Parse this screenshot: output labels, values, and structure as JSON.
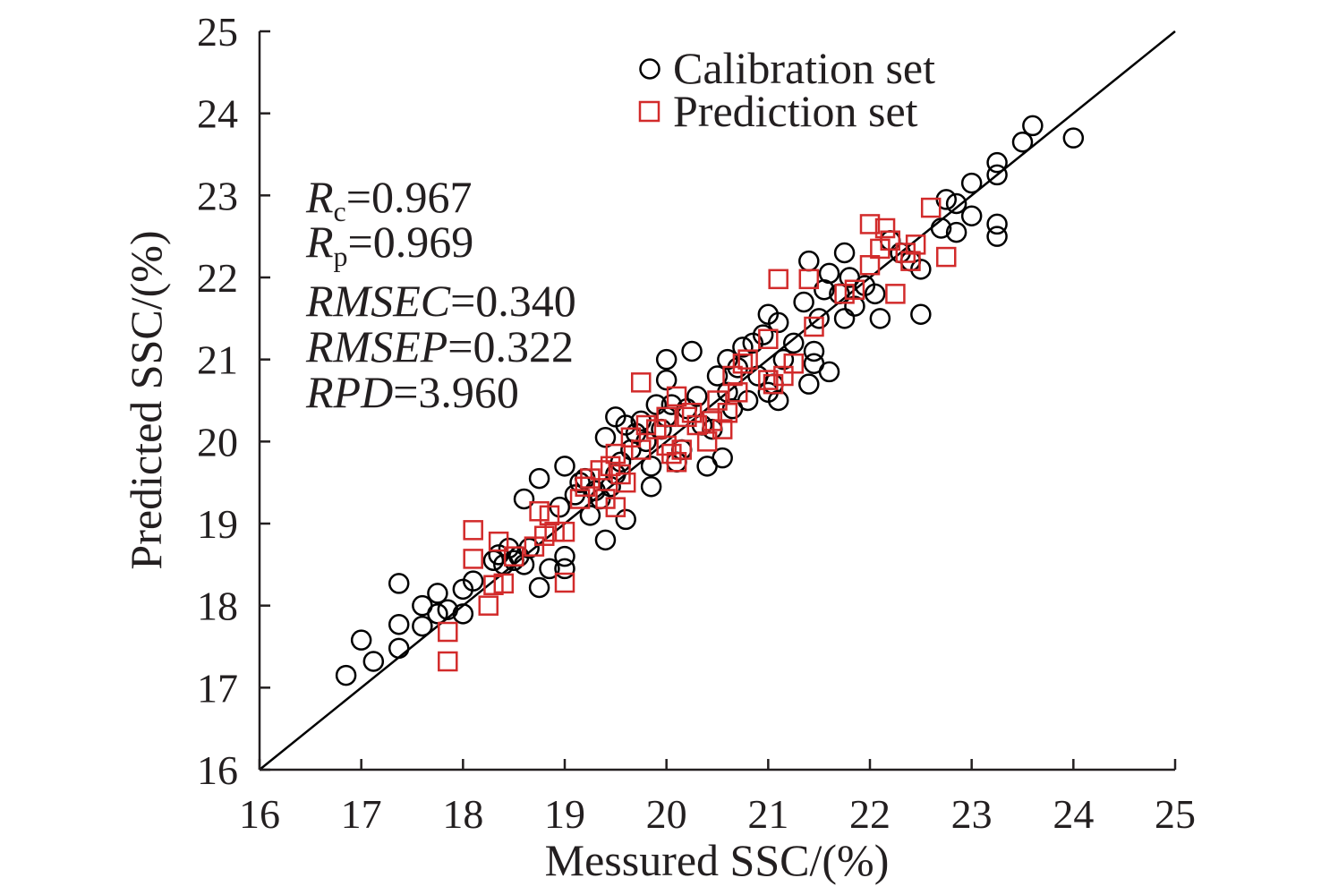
{
  "chart_data": {
    "type": "scatter",
    "xlabel": "Messured SSC/(%)",
    "ylabel": "Predicted SSC/(%)",
    "xlim": [
      16,
      25
    ],
    "ylim": [
      16,
      25
    ],
    "xticks": [
      "16",
      "17",
      "18",
      "19",
      "20",
      "21",
      "22",
      "23",
      "24",
      "25"
    ],
    "yticks": [
      "16",
      "17",
      "18",
      "19",
      "20",
      "21",
      "22",
      "23",
      "24",
      "25"
    ],
    "grid": false,
    "legend_position": "top-right",
    "reference_line": {
      "from": [
        16,
        16
      ],
      "to": [
        25,
        25
      ],
      "color": "#000000"
    },
    "stats": [
      {
        "italic": "R",
        "sub": "c",
        "rest": "=0.967"
      },
      {
        "italic": "R",
        "sub": "p",
        "rest": "=0.969"
      },
      {
        "italic": "RMSEC",
        "sub": "",
        "rest": "=0.340"
      },
      {
        "italic": "RMSEP",
        "sub": "",
        "rest": "=0.322"
      },
      {
        "italic": "RPD",
        "sub": "",
        "rest": "=3.960"
      }
    ],
    "series": [
      {
        "name": "Calibration set",
        "marker": "circle",
        "color": "#000000",
        "points": [
          [
            16.85,
            17.15
          ],
          [
            17.0,
            17.58
          ],
          [
            17.12,
            17.32
          ],
          [
            17.37,
            18.27
          ],
          [
            17.37,
            17.77
          ],
          [
            17.37,
            17.48
          ],
          [
            17.6,
            18.0
          ],
          [
            17.6,
            17.75
          ],
          [
            17.75,
            18.15
          ],
          [
            17.75,
            17.9
          ],
          [
            17.85,
            17.95
          ],
          [
            18.0,
            18.2
          ],
          [
            18.0,
            17.9
          ],
          [
            18.1,
            18.3
          ],
          [
            18.3,
            18.55
          ],
          [
            18.35,
            18.62
          ],
          [
            18.4,
            18.5
          ],
          [
            18.45,
            18.7
          ],
          [
            18.5,
            18.55
          ],
          [
            18.55,
            18.6
          ],
          [
            18.6,
            18.5
          ],
          [
            18.6,
            19.3
          ],
          [
            18.65,
            18.7
          ],
          [
            18.75,
            19.55
          ],
          [
            18.75,
            18.22
          ],
          [
            18.85,
            18.45
          ],
          [
            18.95,
            19.2
          ],
          [
            19.0,
            19.7
          ],
          [
            19.0,
            18.6
          ],
          [
            19.0,
            18.45
          ],
          [
            19.1,
            19.35
          ],
          [
            19.15,
            19.5
          ],
          [
            19.2,
            19.55
          ],
          [
            19.25,
            19.1
          ],
          [
            19.3,
            19.4
          ],
          [
            19.35,
            19.3
          ],
          [
            19.4,
            20.05
          ],
          [
            19.4,
            18.8
          ],
          [
            19.45,
            19.45
          ],
          [
            19.5,
            20.3
          ],
          [
            19.5,
            19.6
          ],
          [
            19.55,
            19.75
          ],
          [
            19.6,
            20.2
          ],
          [
            19.6,
            19.05
          ],
          [
            19.65,
            19.9
          ],
          [
            19.7,
            20.1
          ],
          [
            19.75,
            20.25
          ],
          [
            19.8,
            20.0
          ],
          [
            19.85,
            19.45
          ],
          [
            19.85,
            19.7
          ],
          [
            19.9,
            20.45
          ],
          [
            19.95,
            20.15
          ],
          [
            20.0,
            21.0
          ],
          [
            20.0,
            20.75
          ],
          [
            20.0,
            20.3
          ],
          [
            20.05,
            20.45
          ],
          [
            20.1,
            19.75
          ],
          [
            20.15,
            19.9
          ],
          [
            20.2,
            20.4
          ],
          [
            20.25,
            21.1
          ],
          [
            20.3,
            20.55
          ],
          [
            20.35,
            20.2
          ],
          [
            20.4,
            19.7
          ],
          [
            20.45,
            20.15
          ],
          [
            20.5,
            20.8
          ],
          [
            20.55,
            19.8
          ],
          [
            20.6,
            20.6
          ],
          [
            20.6,
            21.0
          ],
          [
            20.65,
            20.4
          ],
          [
            20.7,
            20.9
          ],
          [
            20.75,
            21.15
          ],
          [
            20.8,
            20.5
          ],
          [
            20.85,
            21.2
          ],
          [
            20.9,
            20.8
          ],
          [
            20.95,
            21.3
          ],
          [
            21.0,
            21.55
          ],
          [
            21.0,
            20.6
          ],
          [
            21.05,
            20.7
          ],
          [
            21.1,
            21.45
          ],
          [
            21.1,
            20.5
          ],
          [
            21.15,
            21.0
          ],
          [
            21.25,
            21.2
          ],
          [
            21.35,
            21.7
          ],
          [
            21.4,
            22.2
          ],
          [
            21.4,
            20.7
          ],
          [
            21.45,
            21.1
          ],
          [
            21.45,
            20.95
          ],
          [
            21.5,
            21.5
          ],
          [
            21.55,
            21.85
          ],
          [
            21.6,
            22.05
          ],
          [
            21.6,
            20.85
          ],
          [
            21.7,
            21.8
          ],
          [
            21.75,
            22.3
          ],
          [
            21.75,
            21.5
          ],
          [
            21.8,
            22.0
          ],
          [
            21.85,
            21.65
          ],
          [
            21.95,
            21.9
          ],
          [
            22.05,
            21.8
          ],
          [
            22.1,
            21.5
          ],
          [
            22.2,
            22.45
          ],
          [
            22.3,
            22.3
          ],
          [
            22.4,
            22.2
          ],
          [
            22.5,
            22.1
          ],
          [
            22.5,
            21.55
          ],
          [
            22.7,
            22.6
          ],
          [
            22.75,
            22.95
          ],
          [
            22.85,
            22.9
          ],
          [
            22.85,
            22.55
          ],
          [
            23.0,
            23.15
          ],
          [
            23.0,
            22.75
          ],
          [
            23.25,
            23.4
          ],
          [
            23.25,
            23.25
          ],
          [
            23.25,
            22.65
          ],
          [
            23.25,
            22.5
          ],
          [
            23.5,
            23.65
          ],
          [
            23.6,
            23.85
          ],
          [
            24.0,
            23.7
          ]
        ]
      },
      {
        "name": "Prediction set",
        "marker": "square",
        "color": "#d22b2b",
        "points": [
          [
            17.85,
            17.68
          ],
          [
            17.85,
            17.32
          ],
          [
            18.1,
            18.92
          ],
          [
            18.1,
            18.57
          ],
          [
            18.25,
            18.0
          ],
          [
            18.3,
            18.25
          ],
          [
            18.35,
            18.78
          ],
          [
            18.4,
            18.27
          ],
          [
            18.5,
            18.6
          ],
          [
            18.7,
            18.72
          ],
          [
            18.75,
            19.15
          ],
          [
            18.8,
            18.85
          ],
          [
            18.85,
            19.1
          ],
          [
            18.9,
            18.9
          ],
          [
            19.0,
            18.9
          ],
          [
            19.0,
            18.28
          ],
          [
            19.15,
            19.3
          ],
          [
            19.2,
            19.45
          ],
          [
            19.25,
            19.55
          ],
          [
            19.35,
            19.65
          ],
          [
            19.4,
            19.3
          ],
          [
            19.45,
            19.7
          ],
          [
            19.5,
            19.85
          ],
          [
            19.5,
            19.2
          ],
          [
            19.55,
            19.6
          ],
          [
            19.6,
            19.5
          ],
          [
            19.65,
            20.05
          ],
          [
            19.75,
            20.72
          ],
          [
            19.75,
            19.9
          ],
          [
            19.8,
            20.2
          ],
          [
            19.9,
            20.15
          ],
          [
            20.0,
            19.95
          ],
          [
            20.0,
            20.3
          ],
          [
            20.05,
            19.85
          ],
          [
            20.1,
            20.55
          ],
          [
            20.1,
            19.75
          ],
          [
            20.15,
            19.9
          ],
          [
            20.2,
            20.3
          ],
          [
            20.25,
            20.35
          ],
          [
            20.3,
            20.2
          ],
          [
            20.4,
            20.0
          ],
          [
            20.45,
            20.25
          ],
          [
            20.5,
            20.5
          ],
          [
            20.55,
            20.15
          ],
          [
            20.6,
            20.35
          ],
          [
            20.65,
            20.8
          ],
          [
            20.7,
            20.6
          ],
          [
            20.75,
            20.95
          ],
          [
            20.8,
            21.0
          ],
          [
            21.0,
            21.25
          ],
          [
            21.0,
            20.75
          ],
          [
            21.05,
            20.7
          ],
          [
            21.1,
            21.98
          ],
          [
            21.15,
            20.8
          ],
          [
            21.25,
            20.95
          ],
          [
            21.4,
            21.98
          ],
          [
            21.45,
            21.4
          ],
          [
            21.75,
            21.8
          ],
          [
            21.85,
            21.85
          ],
          [
            22.0,
            22.65
          ],
          [
            22.0,
            22.15
          ],
          [
            22.1,
            22.35
          ],
          [
            22.15,
            22.6
          ],
          [
            22.2,
            22.45
          ],
          [
            22.25,
            21.8
          ],
          [
            22.35,
            22.3
          ],
          [
            22.4,
            22.2
          ],
          [
            22.45,
            22.4
          ],
          [
            22.6,
            22.85
          ],
          [
            22.75,
            22.25
          ]
        ]
      }
    ]
  }
}
